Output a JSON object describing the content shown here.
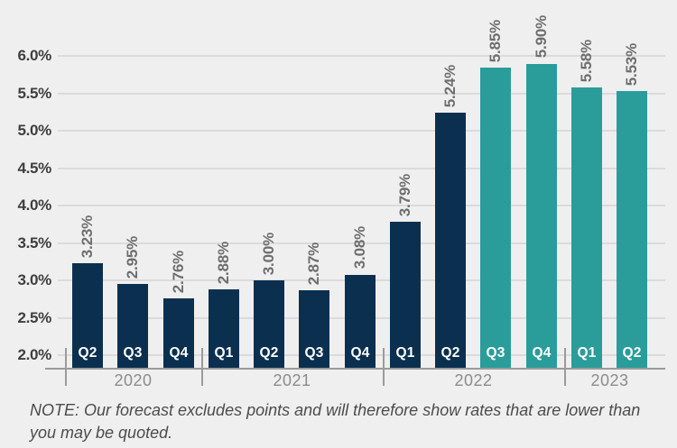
{
  "chart_data": {
    "type": "bar",
    "title": "",
    "xlabel": "",
    "ylabel": "",
    "unit": "percent",
    "grid": true,
    "legend": false,
    "y_axis": {
      "min": 1.835,
      "max": 6.28,
      "ticks": [
        {
          "value": 6.0,
          "label": "6.0%"
        },
        {
          "value": 5.5,
          "label": "5.5%"
        },
        {
          "value": 5.0,
          "label": "5.0%"
        },
        {
          "value": 4.5,
          "label": "4.5%"
        },
        {
          "value": 4.0,
          "label": "4.0%"
        },
        {
          "value": 3.5,
          "label": "3.5%"
        },
        {
          "value": 3.0,
          "label": "3.0%"
        },
        {
          "value": 2.5,
          "label": "2.5%"
        },
        {
          "value": 2.0,
          "label": "2.0%"
        }
      ]
    },
    "colors": {
      "actual": "#0b304f",
      "forecast": "#2a9d9a"
    },
    "bars": [
      {
        "quarter": "Q2",
        "year": "2020",
        "value": 3.23,
        "label": "3.23%",
        "series": "actual"
      },
      {
        "quarter": "Q3",
        "year": "2020",
        "value": 2.95,
        "label": "2.95%",
        "series": "actual"
      },
      {
        "quarter": "Q4",
        "year": "2020",
        "value": 2.76,
        "label": "2.76%",
        "series": "actual"
      },
      {
        "quarter": "Q1",
        "year": "2021",
        "value": 2.88,
        "label": "2.88%",
        "series": "actual"
      },
      {
        "quarter": "Q2",
        "year": "2021",
        "value": 3.0,
        "label": "3.00%",
        "series": "actual"
      },
      {
        "quarter": "Q3",
        "year": "2021",
        "value": 2.87,
        "label": "2.87%",
        "series": "actual"
      },
      {
        "quarter": "Q4",
        "year": "2021",
        "value": 3.08,
        "label": "3.08%",
        "series": "actual"
      },
      {
        "quarter": "Q1",
        "year": "2022",
        "value": 3.79,
        "label": "3.79%",
        "series": "actual"
      },
      {
        "quarter": "Q2",
        "year": "2022",
        "value": 5.24,
        "label": "5.24%",
        "series": "actual"
      },
      {
        "quarter": "Q3",
        "year": "2022",
        "value": 5.85,
        "label": "5.85%",
        "series": "forecast"
      },
      {
        "quarter": "Q4",
        "year": "2022",
        "value": 5.9,
        "label": "5.90%",
        "series": "forecast"
      },
      {
        "quarter": "Q1",
        "year": "2023",
        "value": 5.58,
        "label": "5.58%",
        "series": "forecast"
      },
      {
        "quarter": "Q2",
        "year": "2023",
        "value": 5.53,
        "label": "5.53%",
        "series": "forecast"
      }
    ],
    "x_groups": [
      "2020",
      "2021",
      "2022",
      "2023"
    ]
  },
  "note": {
    "lines": [
      "NOTE: Our forecast excludes points and will therefore show rates that are lower than",
      "you may be quoted."
    ]
  }
}
